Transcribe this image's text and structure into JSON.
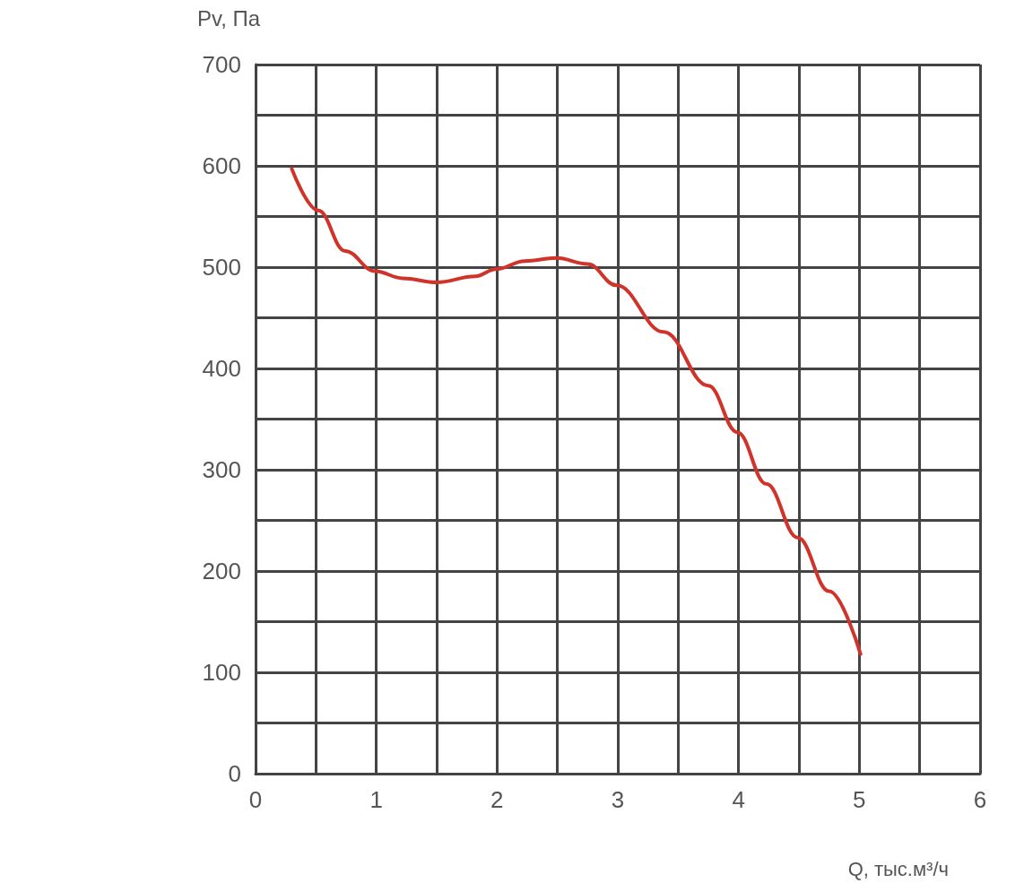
{
  "chart_data": {
    "type": "line",
    "xlabel": "Q, тыс.м³/ч",
    "ylabel": "Pv, Па",
    "x": [
      0.3,
      0.52,
      0.74,
      0.99,
      1.22,
      1.5,
      1.82,
      1.99,
      2.23,
      2.49,
      2.75,
      2.99,
      3.38,
      3.75,
      3.99,
      4.23,
      4.49,
      4.75,
      5.01
    ],
    "series": [
      {
        "color": "#d0332a",
        "values": [
          597,
          556,
          516,
          496,
          489,
          485,
          491,
          498,
          506,
          509,
          503,
          482,
          436,
          383,
          337,
          286,
          233,
          180,
          118
        ]
      }
    ],
    "xlim": [
      0,
      6
    ],
    "xticks": [
      0,
      {
        "value": 0.5,
        "label": null
      },
      1,
      {
        "value": 1.5,
        "label": null
      },
      2,
      {
        "value": 2.5,
        "label": null
      },
      3,
      {
        "value": 3.5,
        "label": null
      },
      4,
      {
        "value": 4.5,
        "label": null
      },
      5,
      {
        "value": 5.5,
        "label": null
      },
      6
    ],
    "ylim": [
      0,
      700
    ],
    "yticks": [
      0,
      {
        "value": 50,
        "label": null
      },
      100,
      {
        "value": 150,
        "label": null
      },
      200,
      {
        "value": 250,
        "label": null
      },
      300,
      {
        "value": 350,
        "label": null
      },
      400,
      {
        "value": 450,
        "label": null
      },
      500,
      {
        "value": 550,
        "label": null
      },
      600,
      {
        "value": 650,
        "label": null
      },
      700
    ],
    "grid": true,
    "marker": "none",
    "line_style": "solid"
  }
}
